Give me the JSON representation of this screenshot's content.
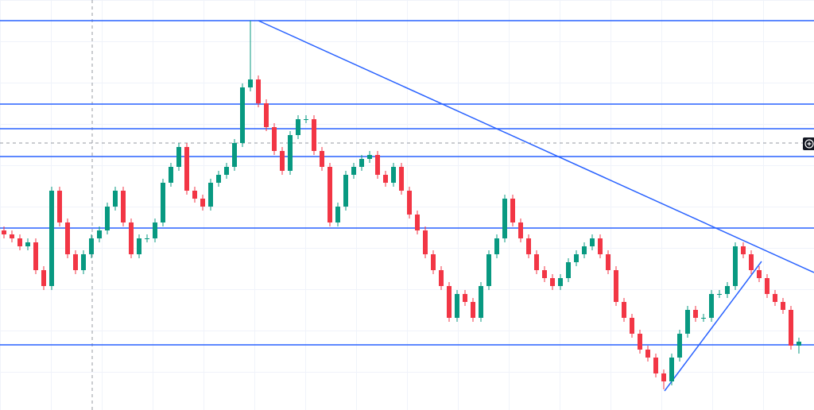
{
  "chart_data": {
    "type": "candlestick",
    "xlim": [
      -0.5,
      101.9
    ],
    "ylim": [
      0,
      516
    ],
    "up_color": "#089981",
    "down_color": "#f23645",
    "line_color": "#2962ff",
    "open": [
      226,
      221,
      216,
      206,
      211,
      176,
      156,
      276,
      236,
      196,
      176,
      196,
      216,
      226,
      256,
      276,
      236,
      196,
      216,
      216,
      236,
      286,
      306,
      331,
      276,
      266,
      256,
      286,
      296,
      306,
      336,
      406,
      416,
      386,
      356,
      326,
      301,
      346,
      366,
      366,
      326,
      306,
      236,
      256,
      296,
      306,
      316,
      321,
      296,
      286,
      306,
      276,
      246,
      226,
      196,
      176,
      156,
      116,
      146,
      136,
      116,
      156,
      196,
      216,
      266,
      236,
      216,
      196,
      176,
      166,
      156,
      166,
      186,
      196,
      206,
      216,
      196,
      176,
      136,
      116,
      96,
      76,
      66,
      46,
      36,
      66,
      96,
      126,
      116,
      116,
      146,
      146,
      156,
      206,
      196,
      176,
      166,
      146,
      136,
      126,
      81
    ],
    "high": [
      231,
      226,
      221,
      216,
      216,
      181,
      281,
      281,
      241,
      201,
      201,
      221,
      231,
      261,
      281,
      281,
      241,
      221,
      221,
      241,
      291,
      311,
      336,
      336,
      281,
      271,
      291,
      301,
      311,
      341,
      411,
      490,
      421,
      391,
      361,
      331,
      351,
      371,
      371,
      371,
      331,
      311,
      261,
      301,
      311,
      321,
      326,
      326,
      301,
      311,
      311,
      281,
      251,
      231,
      201,
      181,
      161,
      151,
      151,
      141,
      161,
      201,
      221,
      271,
      271,
      241,
      221,
      201,
      181,
      171,
      171,
      191,
      201,
      211,
      221,
      221,
      201,
      181,
      141,
      121,
      101,
      81,
      71,
      51,
      71,
      101,
      131,
      131,
      121,
      151,
      151,
      161,
      211,
      211,
      201,
      181,
      171,
      151,
      141,
      131,
      91
    ],
    "low": [
      216,
      211,
      201,
      201,
      171,
      151,
      151,
      231,
      191,
      171,
      171,
      191,
      211,
      221,
      251,
      231,
      191,
      191,
      211,
      211,
      231,
      281,
      301,
      271,
      261,
      251,
      251,
      281,
      291,
      301,
      331,
      401,
      381,
      351,
      321,
      296,
      296,
      341,
      361,
      321,
      301,
      231,
      231,
      251,
      291,
      301,
      311,
      291,
      281,
      281,
      271,
      241,
      221,
      191,
      171,
      151,
      111,
      111,
      131,
      111,
      111,
      151,
      191,
      211,
      231,
      211,
      191,
      171,
      161,
      151,
      151,
      161,
      181,
      191,
      201,
      191,
      171,
      131,
      111,
      91,
      71,
      61,
      41,
      26,
      31,
      61,
      91,
      111,
      111,
      111,
      141,
      141,
      151,
      191,
      171,
      161,
      141,
      131,
      121,
      76,
      71
    ],
    "close": [
      221,
      216,
      206,
      211,
      176,
      156,
      276,
      236,
      196,
      176,
      196,
      216,
      226,
      256,
      276,
      236,
      196,
      216,
      216,
      236,
      286,
      306,
      331,
      276,
      266,
      256,
      286,
      296,
      306,
      336,
      406,
      416,
      386,
      356,
      326,
      301,
      346,
      366,
      366,
      326,
      306,
      236,
      256,
      296,
      306,
      316,
      321,
      296,
      286,
      306,
      276,
      246,
      226,
      196,
      176,
      156,
      116,
      146,
      136,
      116,
      156,
      196,
      216,
      266,
      236,
      216,
      196,
      176,
      166,
      156,
      166,
      186,
      196,
      206,
      216,
      196,
      176,
      136,
      116,
      96,
      76,
      66,
      46,
      36,
      66,
      96,
      126,
      116,
      116,
      146,
      146,
      156,
      206,
      196,
      176,
      166,
      146,
      136,
      126,
      81,
      86
    ],
    "levels": [
      490,
      385,
      354,
      319,
      229,
      82
    ],
    "trend_lines": [
      {
        "x": [
          32,
          101.9
        ],
        "y": [
          490,
          173
        ]
      },
      {
        "x": [
          83.1,
          95.3
        ],
        "y": [
          24,
          187
        ]
      }
    ]
  }
}
